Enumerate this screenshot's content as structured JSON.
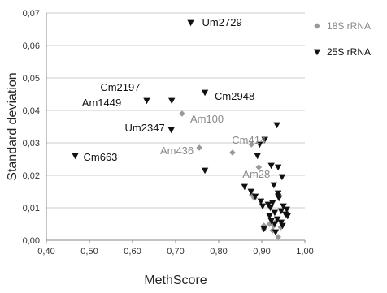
{
  "chart_data": {
    "type": "scatter",
    "xlabel": "MethScore",
    "ylabel": "Standard deviation",
    "xlim": [
      0.4,
      1.0
    ],
    "ylim": [
      0.0,
      0.07
    ],
    "x_ticks": [
      "0,40",
      "0,50",
      "0,60",
      "0,70",
      "0,80",
      "0,90",
      "1,00"
    ],
    "x_tick_values": [
      0.4,
      0.5,
      0.6,
      0.7,
      0.8,
      0.9,
      1.0
    ],
    "y_ticks": [
      "0,00",
      "0,01",
      "0,02",
      "0,03",
      "0,04",
      "0,05",
      "0,06",
      "0,07"
    ],
    "y_tick_values": [
      0.0,
      0.01,
      0.02,
      0.03,
      0.04,
      0.05,
      0.06,
      0.07
    ],
    "grid": "horizontal",
    "legend_position": "top-right",
    "series": [
      {
        "name": "18S rRNA",
        "marker": "diamond",
        "color": "#999999",
        "x": [
          0.715,
          0.755,
          0.832,
          0.876,
          0.893,
          0.877,
          0.883,
          0.905,
          0.918,
          0.925,
          0.905,
          0.935,
          0.928,
          0.944,
          0.938
        ],
        "y": [
          0.039,
          0.0285,
          0.027,
          0.0295,
          0.0225,
          0.014,
          0.013,
          0.0045,
          0.005,
          0.003,
          0.0035,
          0.006,
          0.0045,
          0.004,
          0.001
        ]
      },
      {
        "name": "25S rRNA",
        "marker": "triangle-down",
        "color": "#111111",
        "x": [
          0.467,
          0.633,
          0.691,
          0.735,
          0.768,
          0.69,
          0.768,
          0.935,
          0.907,
          0.895,
          0.89,
          0.922,
          0.938,
          0.947,
          0.928,
          0.938,
          0.938,
          0.86,
          0.875,
          0.885,
          0.898,
          0.902,
          0.915,
          0.92,
          0.925,
          0.93,
          0.94,
          0.945,
          0.95,
          0.955,
          0.96,
          0.958,
          0.936,
          0.945,
          0.918,
          0.922,
          0.93,
          0.905,
          0.948,
          0.932
        ],
        "y": [
          0.026,
          0.043,
          0.043,
          0.067,
          0.0455,
          0.034,
          0.0215,
          0.0355,
          0.031,
          0.0295,
          0.026,
          0.023,
          0.0225,
          0.0195,
          0.017,
          0.0145,
          0.0135,
          0.0165,
          0.015,
          0.0135,
          0.012,
          0.0105,
          0.011,
          0.01,
          0.0115,
          0.0085,
          0.013,
          0.009,
          0.0105,
          0.008,
          0.0075,
          0.0095,
          0.0065,
          0.0055,
          0.0075,
          0.006,
          0.005,
          0.0035,
          0.0045,
          0.0025
        ]
      }
    ],
    "annotations": [
      {
        "text": "Um2729",
        "x": 0.735,
        "y": 0.067,
        "series": "25S rRNA"
      },
      {
        "text": "Cm2197",
        "x": 0.633,
        "y": 0.043,
        "series": "25S rRNA"
      },
      {
        "text": "Cm2948",
        "x": 0.768,
        "y": 0.0455,
        "series": "25S rRNA"
      },
      {
        "text": "Am1449",
        "x": 0.691,
        "y": 0.043,
        "series": "25S rRNA"
      },
      {
        "text": "Am100",
        "x": 0.715,
        "y": 0.039,
        "series": "18S rRNA"
      },
      {
        "text": "Um2347",
        "x": 0.69,
        "y": 0.034,
        "series": "25S rRNA"
      },
      {
        "text": "Cm414",
        "x": 0.876,
        "y": 0.0295,
        "series": "18S rRNA"
      },
      {
        "text": "Cm663",
        "x": 0.467,
        "y": 0.026,
        "series": "25S rRNA"
      },
      {
        "text": "Am436",
        "x": 0.755,
        "y": 0.0285,
        "series": "18S rRNA"
      },
      {
        "text": "Am28",
        "x": 0.893,
        "y": 0.0225,
        "series": "18S rRNA"
      }
    ]
  }
}
